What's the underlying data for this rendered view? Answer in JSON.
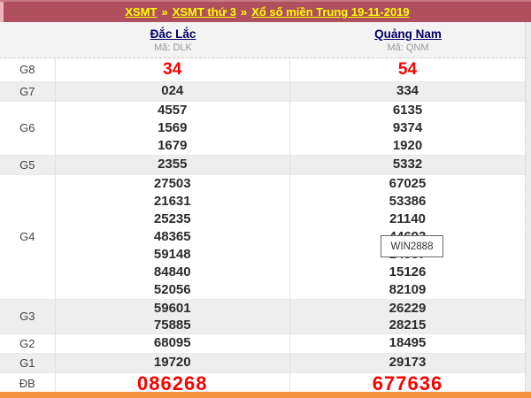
{
  "breadcrumb": {
    "separator": "»",
    "items": [
      {
        "label": "XSMT"
      },
      {
        "label": "XSMT thứ 3"
      },
      {
        "label": "Xổ số miền Trung 19-11-2019"
      }
    ]
  },
  "columns": [
    {
      "name": "Đắc Lắc",
      "code": "Mã: DLK"
    },
    {
      "name": "Quảng Nam",
      "code": "Mã: QNM"
    }
  ],
  "prizes": [
    {
      "label": "G8",
      "highlight": true,
      "big": false,
      "dlk": [
        "34"
      ],
      "qnm": [
        "54"
      ]
    },
    {
      "label": "G7",
      "highlight": false,
      "big": false,
      "dlk": [
        "024"
      ],
      "qnm": [
        "334"
      ]
    },
    {
      "label": "G6",
      "highlight": false,
      "big": false,
      "dlk": [
        "4557",
        "1569",
        "1679"
      ],
      "qnm": [
        "6135",
        "9374",
        "1920"
      ]
    },
    {
      "label": "G5",
      "highlight": false,
      "big": false,
      "dlk": [
        "2355"
      ],
      "qnm": [
        "5332"
      ]
    },
    {
      "label": "G4",
      "highlight": false,
      "big": false,
      "dlk": [
        "27503",
        "21631",
        "25235",
        "48365",
        "59148",
        "84840",
        "52056"
      ],
      "qnm": [
        "67025",
        "53386",
        "21140",
        "44693",
        "14957",
        "15126",
        "82109"
      ]
    },
    {
      "label": "G3",
      "highlight": false,
      "big": false,
      "dlk": [
        "59601",
        "75885"
      ],
      "qnm": [
        "26229",
        "28215"
      ]
    },
    {
      "label": "G2",
      "highlight": false,
      "big": false,
      "dlk": [
        "68095"
      ],
      "qnm": [
        "18495"
      ]
    },
    {
      "label": "G1",
      "highlight": false,
      "big": false,
      "dlk": [
        "19720"
      ],
      "qnm": [
        "29173"
      ]
    },
    {
      "label": "ĐB",
      "highlight": true,
      "big": true,
      "dlk": [
        "086268"
      ],
      "qnm": [
        "677636"
      ]
    }
  ],
  "watermark": {
    "label": "WIN2888"
  },
  "colors": {
    "header_bg": "#b0505e",
    "breadcrumb_link": "#ffff00",
    "column_link": "#000066",
    "highlight_number": "#ff0000",
    "row_alt_bg": "#eeeeee",
    "bottom_bar": "#f5923e"
  }
}
